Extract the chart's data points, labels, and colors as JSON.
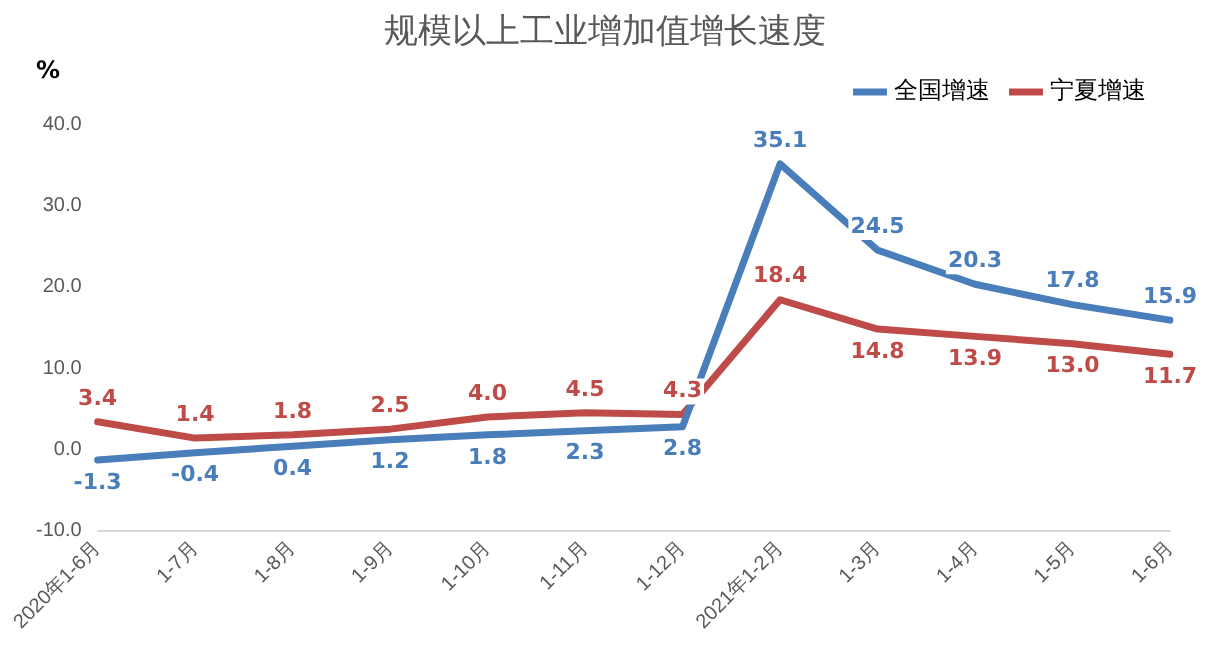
{
  "chart_data": {
    "type": "line",
    "title": "规模以上工业增加值增长速度",
    "ylabel": "%",
    "categories": [
      "2020年1-6月",
      "1-7月",
      "1-8月",
      "1-9月",
      "1-10月",
      "1-11月",
      "1-12月",
      "2021年1-2月",
      "1-3月",
      "1-4月",
      "1-5月",
      "1-6月"
    ],
    "series": [
      {
        "name": "全国增速",
        "color": "#4a7ebb",
        "values": [
          -1.3,
          -0.4,
          0.4,
          1.2,
          1.8,
          2.3,
          2.8,
          35.1,
          24.5,
          20.3,
          17.8,
          15.9
        ],
        "value_labels": [
          "-1.3",
          "-0.4",
          "0.4",
          "1.2",
          "1.8",
          "2.3",
          "2.8",
          "35.1",
          "24.5",
          "20.3",
          "17.8",
          "15.9"
        ]
      },
      {
        "name": "宁夏增速",
        "color": "#be4b48",
        "values": [
          3.4,
          1.4,
          1.8,
          2.5,
          4.0,
          4.5,
          4.3,
          18.4,
          14.8,
          13.9,
          13.0,
          11.7
        ],
        "value_labels": [
          "3.4",
          "1.4",
          "1.8",
          "2.5",
          "4.0",
          "4.5",
          "4.3",
          "18.4",
          "14.8",
          "13.9",
          "13.0",
          "11.7"
        ]
      }
    ],
    "ylim": [
      -10,
      40
    ],
    "yticks": [
      {
        "value": -10,
        "label": "-10.0"
      },
      {
        "value": 0,
        "label": "0.0"
      },
      {
        "value": 10,
        "label": "10.0"
      },
      {
        "value": 20,
        "label": "20.0"
      },
      {
        "value": 30,
        "label": "30.0"
      },
      {
        "value": 40,
        "label": "40.0"
      }
    ],
    "grid": false,
    "legend": "top right",
    "marker": "none",
    "line_style": "solid"
  }
}
